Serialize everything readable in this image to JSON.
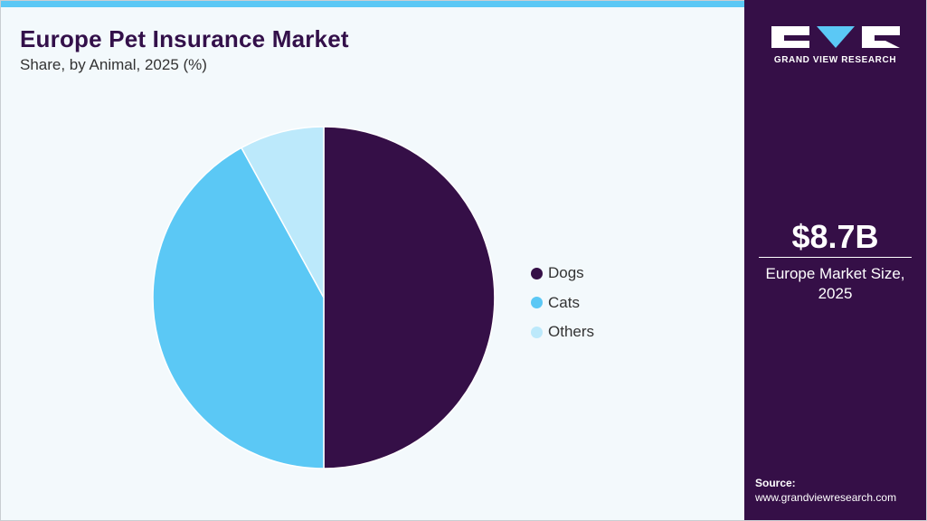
{
  "header": {
    "title": "Europe Pet Insurance Market",
    "subtitle": "Share, by Animal, 2025 (%)"
  },
  "chart_data": {
    "type": "pie",
    "categories": [
      "Dogs",
      "Cats",
      "Others"
    ],
    "values": [
      50.0,
      42.0,
      8.0
    ],
    "colors": [
      "#350f47",
      "#5bc8f5",
      "#bce9fb"
    ],
    "legend_position": "right"
  },
  "panel": {
    "logo_text": "GRAND VIEW RESEARCH",
    "market_size": "$8.7B",
    "market_size_label": "Europe Market Size, 2025",
    "source_label": "Source:",
    "source_url": "www.grandviewresearch.com"
  },
  "colors": {
    "brand_dark": "#350f47",
    "accent": "#5bc8f5",
    "background": "#f3f9fc"
  }
}
